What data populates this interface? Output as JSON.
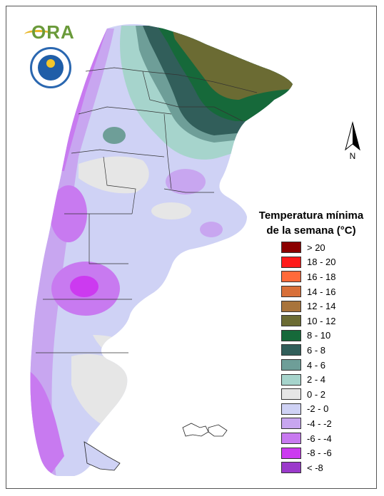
{
  "logo": {
    "text": "ORA",
    "seal": "Servicio Meteorológico Nacional Argentina"
  },
  "north_arrow": {
    "label": "N"
  },
  "legend": {
    "title_line1": "Temperatura mínima",
    "title_line2": "de la semana (°C)",
    "items": [
      {
        "label": "> 20",
        "color": "#8b0000"
      },
      {
        "label": "18 - 20",
        "color": "#ff1a1a"
      },
      {
        "label": "16 - 18",
        "color": "#ff6a3a"
      },
      {
        "label": "14 - 16",
        "color": "#d8703a"
      },
      {
        "label": "12 - 14",
        "color": "#a8743c"
      },
      {
        "label": "10 - 12",
        "color": "#6b6b33"
      },
      {
        "label": "8 - 10",
        "color": "#16693a"
      },
      {
        "label": "6 - 8",
        "color": "#315e5a"
      },
      {
        "label": "4 - 6",
        "color": "#6e9e98"
      },
      {
        "label": "2 - 4",
        "color": "#a6d4cc"
      },
      {
        "label": "0 - 2",
        "color": "#e6e6e6"
      },
      {
        "label": "-2 - 0",
        "color": "#cfd2f5"
      },
      {
        "label": "-4 - -2",
        "color": "#c8a6f0"
      },
      {
        "label": "-6 - -4",
        "color": "#c87af0"
      },
      {
        "label": "-8 - -6",
        "color": "#cc3af0"
      },
      {
        "label": "< -8",
        "color": "#9b3acb"
      }
    ]
  }
}
